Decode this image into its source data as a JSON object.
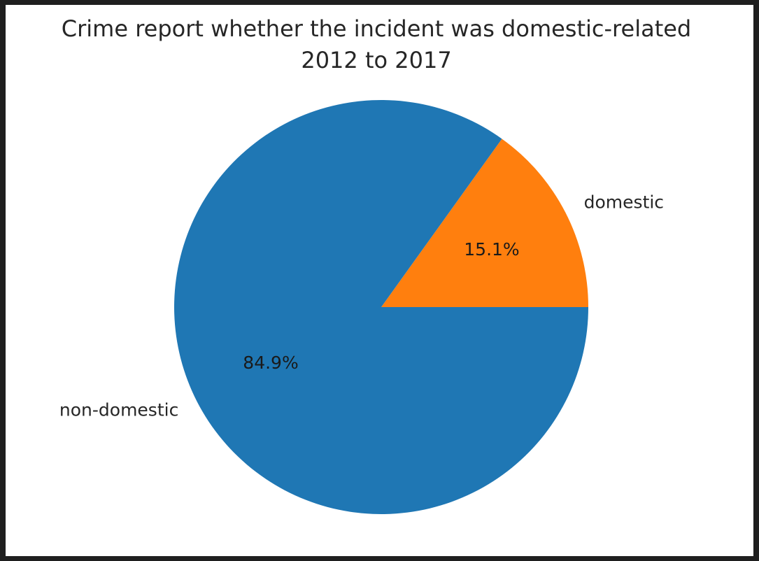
{
  "chart_data": {
    "type": "pie",
    "title": "Crime report whether the incident was domestic-related",
    "subtitle": "2012 to 2017",
    "start_angle_deg": 0,
    "direction": "counterclockwise",
    "slices": [
      {
        "label": "domestic",
        "value": 15.1,
        "pct_label": "15.1%",
        "color": "#ff7f0e"
      },
      {
        "label": "non-domestic",
        "value": 84.9,
        "pct_label": "84.9%",
        "color": "#1f77b4"
      }
    ]
  }
}
